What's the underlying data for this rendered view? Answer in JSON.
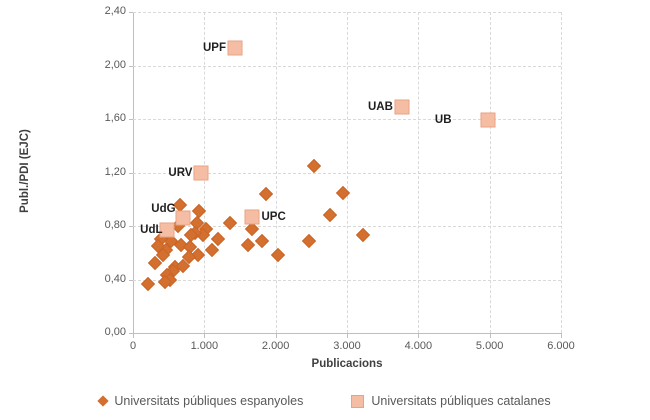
{
  "chart_data": {
    "type": "scatter",
    "title": "",
    "xlabel": "Publicacions",
    "ylabel": "Publ./PDI (EJC)",
    "xlim": [
      0,
      6000
    ],
    "ylim": [
      0,
      2.4
    ],
    "grid": "dashed",
    "legend_position": "bottom",
    "x_ticks": [
      {
        "label": "0",
        "value": 0
      },
      {
        "label": "1.000",
        "value": 1000
      },
      {
        "label": "2.000",
        "value": 2000
      },
      {
        "label": "3.000",
        "value": 3000
      },
      {
        "label": "4.000",
        "value": 4000
      },
      {
        "label": "5.000",
        "value": 5000
      },
      {
        "label": "6.000",
        "value": 6000
      }
    ],
    "y_ticks": [
      {
        "label": "0,00",
        "value": 0.0
      },
      {
        "label": "0,40",
        "value": 0.4
      },
      {
        "label": "0,80",
        "value": 0.8
      },
      {
        "label": "1,20",
        "value": 1.2
      },
      {
        "label": "1,60",
        "value": 1.6
      },
      {
        "label": "2,00",
        "value": 2.0
      },
      {
        "label": "2,40",
        "value": 2.4
      }
    ],
    "series": [
      {
        "name": "Universitats públiques espanyoles",
        "marker": "diamond",
        "color": "#D4702F",
        "border_color": "#C96528",
        "points": [
          [
            2535,
            1.25
          ],
          [
            2940,
            1.05
          ],
          [
            1870,
            1.04
          ],
          [
            2760,
            0.88
          ],
          [
            3230,
            0.73
          ],
          [
            2470,
            0.69
          ],
          [
            2035,
            0.58
          ],
          [
            1670,
            0.78
          ],
          [
            1810,
            0.69
          ],
          [
            1615,
            0.66
          ],
          [
            1360,
            0.82
          ],
          [
            1195,
            0.7
          ],
          [
            1105,
            0.62
          ],
          [
            1030,
            0.78
          ],
          [
            985,
            0.73
          ],
          [
            925,
            0.91
          ],
          [
            895,
            0.82
          ],
          [
            870,
            0.75
          ],
          [
            820,
            0.73
          ],
          [
            665,
            0.96
          ],
          [
            630,
            0.8
          ],
          [
            675,
            0.66
          ],
          [
            795,
            0.64
          ],
          [
            910,
            0.58
          ],
          [
            790,
            0.57
          ],
          [
            535,
            0.69
          ],
          [
            465,
            0.62
          ],
          [
            425,
            0.58
          ],
          [
            395,
            0.7
          ],
          [
            350,
            0.65
          ],
          [
            310,
            0.52
          ],
          [
            590,
            0.49
          ],
          [
            705,
            0.5
          ],
          [
            565,
            0.46
          ],
          [
            470,
            0.43
          ],
          [
            520,
            0.4
          ],
          [
            450,
            0.38
          ],
          [
            215,
            0.37
          ]
        ]
      },
      {
        "name": "Universitats públiques catalanes",
        "marker": "square",
        "color": "#F5BDA3",
        "border_color": "#E9A284",
        "points": [
          {
            "label": "UPF",
            "x": 1430,
            "y": 2.13,
            "side": "left",
            "dx": -9,
            "dy": 0
          },
          {
            "label": "UAB",
            "x": 3770,
            "y": 1.69,
            "side": "left",
            "dx": -9,
            "dy": 0
          },
          {
            "label": "UB",
            "x": 4970,
            "y": 1.59,
            "side": "left",
            "dx": -36,
            "dy": 0
          },
          {
            "label": "URV",
            "x": 960,
            "y": 1.2,
            "side": "left",
            "dx": -9,
            "dy": 0
          },
          {
            "label": "UPC",
            "x": 1675,
            "y": 0.87,
            "side": "right",
            "dx": 9,
            "dy": 0
          },
          {
            "label": "UdG",
            "x": 695,
            "y": 0.86,
            "side": "left",
            "dx": -7,
            "dy": -9
          },
          {
            "label": "UdL",
            "x": 470,
            "y": 0.77,
            "side": "left",
            "dx": -4,
            "dy": 0
          }
        ]
      }
    ],
    "colors": {
      "gridline": "#D9D9D9",
      "axis_line": "#BFBFBF",
      "tick_text": "#595959",
      "axis_title_text": "#404040",
      "point_label_text": "#1F1F1F",
      "background": "#FFFFFF"
    }
  }
}
